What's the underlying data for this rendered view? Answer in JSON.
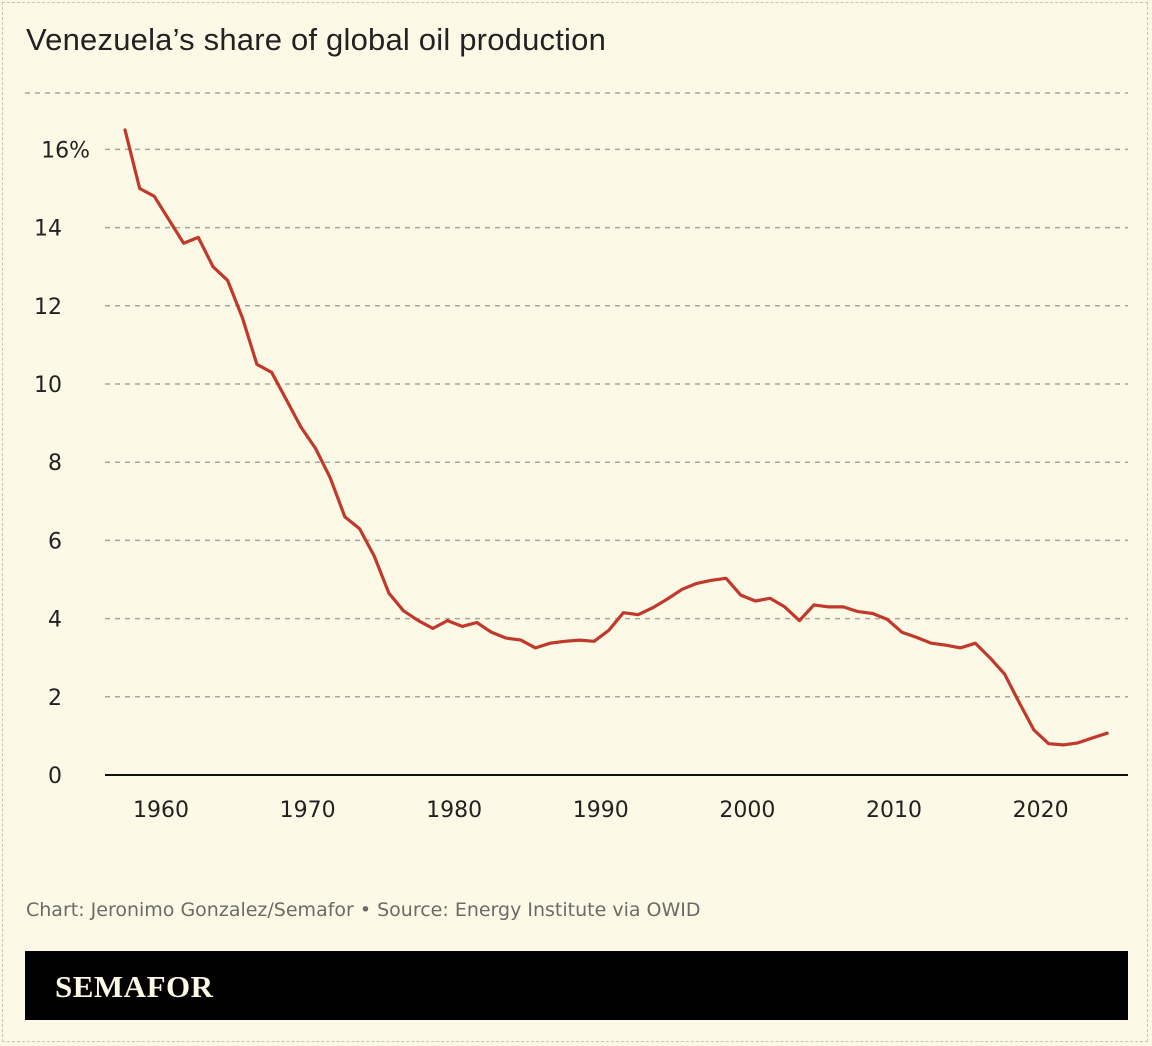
{
  "title": "Venezuela’s share of global oil production",
  "credit": "Chart: Jeronimo Gonzalez/Semafor • Source: Energy Institute via OWID",
  "brand": "SEMAFOR",
  "colors": {
    "line": "#c0392b",
    "background": "#fdf9e7",
    "grid": "#a8a69c",
    "brandbar": "#000000"
  },
  "chart_data": {
    "type": "line",
    "title": "Venezuela’s share of global oil production",
    "xlabel": "",
    "ylabel": "",
    "xlim": [
      1957,
      2024
    ],
    "ylim": [
      0,
      17
    ],
    "grid": true,
    "y_ticks": [
      0,
      2,
      4,
      6,
      8,
      10,
      12,
      14,
      16
    ],
    "y_tick_labels": [
      "0",
      "2",
      "4",
      "6",
      "8",
      "10",
      "12",
      "14",
      "16%"
    ],
    "x_ticks": [
      1960,
      1970,
      1980,
      1990,
      2000,
      2010,
      2020
    ],
    "x_tick_labels": [
      "1960",
      "1970",
      "1980",
      "1990",
      "2000",
      "2010",
      "2020"
    ],
    "x": [
      1957,
      1958,
      1959,
      1960,
      1961,
      1962,
      1963,
      1964,
      1965,
      1966,
      1967,
      1968,
      1969,
      1970,
      1971,
      1972,
      1973,
      1974,
      1975,
      1976,
      1977,
      1978,
      1979,
      1980,
      1981,
      1982,
      1983,
      1984,
      1985,
      1986,
      1987,
      1988,
      1989,
      1990,
      1991,
      1992,
      1993,
      1994,
      1995,
      1996,
      1997,
      1998,
      1999,
      2000,
      2001,
      2002,
      2003,
      2004,
      2005,
      2006,
      2007,
      2008,
      2009,
      2010,
      2011,
      2012,
      2013,
      2014,
      2015,
      2016,
      2017,
      2018,
      2019,
      2020,
      2021,
      2022,
      2023,
      2024
    ],
    "values": [
      16.5,
      15.0,
      14.8,
      14.2,
      13.6,
      13.75,
      13.0,
      12.65,
      11.7,
      10.5,
      10.3,
      9.6,
      8.9,
      8.35,
      7.6,
      6.6,
      6.3,
      5.6,
      4.65,
      4.2,
      3.95,
      3.75,
      3.95,
      3.8,
      3.9,
      3.65,
      3.5,
      3.45,
      3.25,
      3.37,
      3.42,
      3.45,
      3.42,
      3.7,
      4.15,
      4.1,
      4.28,
      4.5,
      4.75,
      4.9,
      4.98,
      5.03,
      4.6,
      4.45,
      4.52,
      4.3,
      3.95,
      4.35,
      4.3,
      4.3,
      4.18,
      4.13,
      3.98,
      3.65,
      3.52,
      3.37,
      3.32,
      3.25,
      3.37,
      3.0,
      2.58,
      1.85,
      1.15,
      0.8,
      0.77,
      0.82,
      0.95,
      1.07
    ]
  }
}
